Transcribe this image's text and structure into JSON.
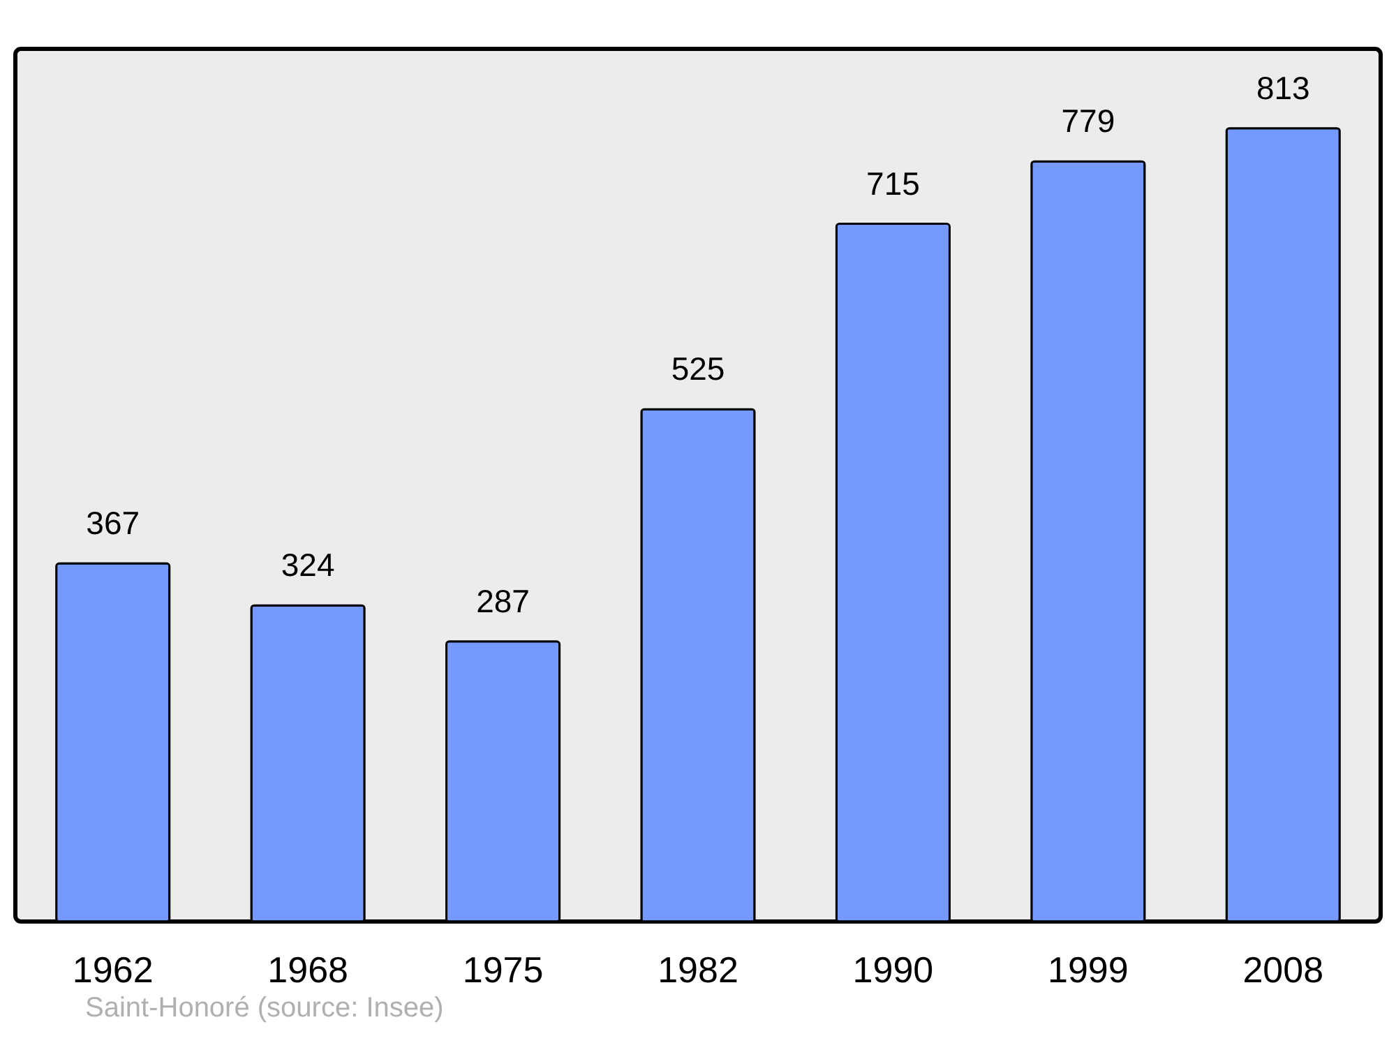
{
  "chart_data": {
    "type": "bar",
    "categories": [
      "1962",
      "1968",
      "1975",
      "1982",
      "1990",
      "1999",
      "2008"
    ],
    "values": [
      367,
      324,
      287,
      525,
      715,
      779,
      813
    ],
    "color": "#7599ff",
    "data_labels": true,
    "annotations": [
      "Saint-Honoré    (source: Insee)"
    ]
  }
}
